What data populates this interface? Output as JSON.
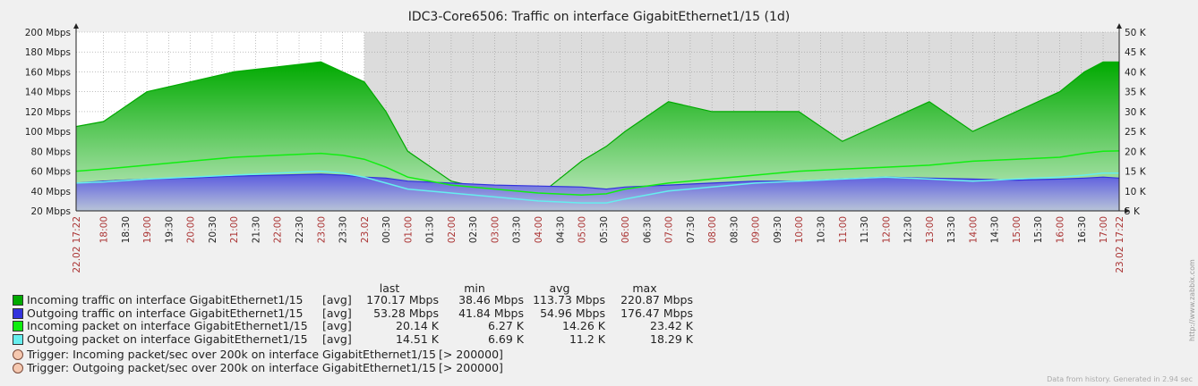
{
  "chart_data": {
    "type": "area",
    "title": "IDC3-Core6506: Traffic on interface GigabitEthernet1/15 (1d)",
    "left_axis": {
      "min": 20,
      "max": 200,
      "step": 20,
      "unit": "Mbps",
      "ticks": [
        "20 Mbps",
        "40 Mbps",
        "60 Mbps",
        "80 Mbps",
        "100 Mbps",
        "120 Mbps",
        "140 Mbps",
        "160 Mbps",
        "180 Mbps",
        "200 Mbps"
      ]
    },
    "right_axis": {
      "min": 5,
      "max": 50,
      "step": 5,
      "unit": "K",
      "ticks": [
        "5 K",
        "10 K",
        "15 K",
        "20 K",
        "25 K",
        "30 K",
        "35 K",
        "40 K",
        "45 K",
        "50 K"
      ]
    },
    "x_range": [
      "22.02 17:22",
      "23.02 17:22"
    ],
    "x_start_label": "22.02 17:22",
    "x_end_label": "23.02 17:22",
    "day_label": "23.02",
    "x_ticks": [
      "18:00",
      "18:30",
      "19:00",
      "19:30",
      "20:00",
      "20:30",
      "21:00",
      "21:30",
      "22:00",
      "22:30",
      "23:00",
      "23:30",
      "23.02",
      "00:30",
      "01:00",
      "01:30",
      "02:00",
      "02:30",
      "03:00",
      "03:30",
      "04:00",
      "04:30",
      "05:00",
      "05:30",
      "06:00",
      "06:30",
      "07:00",
      "07:30",
      "08:00",
      "08:30",
      "09:00",
      "09:30",
      "10:00",
      "10:30",
      "11:00",
      "11:30",
      "12:00",
      "12:30",
      "13:00",
      "13:30",
      "14:00",
      "14:30",
      "15:00",
      "15:30",
      "16:00",
      "16:30",
      "17:00"
    ],
    "x_ticks_highlighted": [
      "18:00",
      "19:00",
      "20:00",
      "21:00",
      "22:00",
      "23:00",
      "23.02",
      "01:00",
      "02:00",
      "03:00",
      "04:00",
      "05:00",
      "06:00",
      "07:00",
      "08:00",
      "09:00",
      "10:00",
      "11:00",
      "12:00",
      "13:00",
      "14:00",
      "15:00",
      "16:00",
      "17:00"
    ],
    "x_hours": [
      0.0,
      0.63,
      1.63,
      2.63,
      3.63,
      4.63,
      5.63,
      6.13,
      6.63,
      7.13,
      7.63,
      8.63,
      9.63,
      10.63,
      11.63,
      12.2,
      12.63,
      13.63,
      14.63,
      15.63,
      16.63,
      17.63,
      18.63,
      19.63,
      20.63,
      21.63,
      22.63,
      23.2,
      23.63,
      24.0
    ],
    "series": [
      {
        "name": "Incoming traffic on interface GigabitEthernet1/15",
        "axis": "left",
        "color": "#00aa00",
        "style": "filled",
        "values": [
          105,
          110,
          140,
          150,
          160,
          165,
          170,
          160,
          150,
          120,
          80,
          50,
          40,
          35,
          70,
          85,
          100,
          130,
          120,
          120,
          120,
          90,
          110,
          130,
          100,
          120,
          140,
          160,
          170,
          170
        ]
      },
      {
        "name": "Outgoing traffic on interface GigabitEthernet1/15",
        "axis": "left",
        "color": "#3333dd",
        "style": "filled",
        "values": [
          48,
          50,
          52,
          53,
          55,
          56,
          57,
          56,
          54,
          53,
          50,
          48,
          46,
          45,
          44,
          42,
          44,
          46,
          48,
          50,
          50,
          52,
          54,
          53,
          52,
          51,
          52,
          53,
          54,
          53
        ]
      },
      {
        "name": "Incoming packet on interface GigabitEthernet1/15",
        "axis": "right",
        "color": "#11ee11",
        "style": "line",
        "values": [
          15,
          15.5,
          16.5,
          17.5,
          18.5,
          19,
          19.5,
          19,
          18,
          16,
          13.5,
          11.5,
          10.5,
          9.5,
          9,
          9.3,
          10.5,
          12,
          13,
          14,
          15,
          15.5,
          16,
          16.5,
          17.5,
          18,
          18.5,
          19.5,
          20,
          20.1
        ]
      },
      {
        "name": "Outgoing packet on interface GigabitEthernet1/15",
        "axis": "right",
        "color": "#66eeee",
        "style": "line",
        "values": [
          12,
          12.3,
          13,
          13.5,
          14,
          14.5,
          15,
          14.5,
          13.5,
          12,
          10.5,
          9.5,
          8.5,
          7.5,
          7,
          7,
          8,
          10,
          11,
          12,
          12.5,
          13,
          13.5,
          13,
          12.5,
          13,
          13.5,
          14,
          14.5,
          14.5
        ]
      }
    ]
  },
  "legend": {
    "headers": {
      "last": "last",
      "min": "min",
      "avg": "avg",
      "max": "max"
    },
    "items": [
      {
        "name": "Incoming traffic on interface GigabitEthernet1/15",
        "fn": "[avg]",
        "color": "#00aa00",
        "last": "170.17 Mbps",
        "min": "38.46 Mbps",
        "avg": "113.73 Mbps",
        "max": "220.87 Mbps"
      },
      {
        "name": "Outgoing traffic on interface GigabitEthernet1/15",
        "fn": "[avg]",
        "color": "#3333dd",
        "last": "53.28 Mbps",
        "min": "41.84 Mbps",
        "avg": "54.96 Mbps",
        "max": "176.47 Mbps"
      },
      {
        "name": "Incoming packet on interface GigabitEthernet1/15",
        "fn": "[avg]",
        "color": "#11ee11",
        "last": "20.14 K",
        "min": "6.27 K",
        "avg": "14.26 K",
        "max": "23.42 K"
      },
      {
        "name": "Outgoing packet on interface GigabitEthernet1/15",
        "fn": "[avg]",
        "color": "#66eeee",
        "last": "14.51 K",
        "min": "6.69 K",
        "avg": "11.2 K",
        "max": "18.29 K"
      }
    ],
    "triggers": [
      {
        "name": "Trigger: Incoming packet/sec over 200k on interface GigabitEthernet1/15",
        "value": "[> 200000]"
      },
      {
        "name": "Trigger: Outgoing packet/sec over 200k on interface GigabitEthernet1/15",
        "value": "[> 200000]"
      }
    ]
  },
  "footer": "Data from history. Generated in 2.94 sec",
  "side_label": "http://www.zabbix.com"
}
